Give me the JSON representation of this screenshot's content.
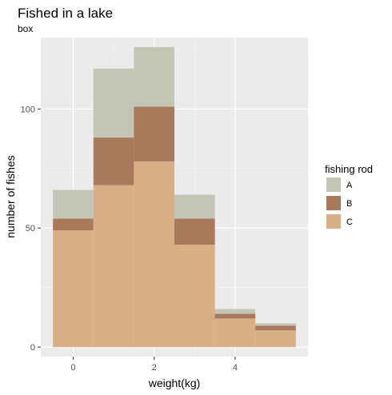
{
  "chart_data": {
    "type": "bar",
    "stacked": true,
    "title": "Fished in a lake",
    "subtitle": "box",
    "xlabel": "weight(kg)",
    "ylabel": "number of fishes",
    "x_ticks": [
      0,
      2,
      4
    ],
    "y_ticks": [
      0,
      50,
      100
    ],
    "xlim": [
      -0.8,
      5.8
    ],
    "ylim": [
      -4,
      130
    ],
    "bin_width": 1,
    "categories": [
      0,
      1,
      2,
      3,
      4,
      5
    ],
    "series": [
      {
        "name": "C",
        "color": "#d9b086",
        "values": [
          49,
          68,
          78,
          43,
          12,
          7
        ]
      },
      {
        "name": "B",
        "color": "#a8795a",
        "values": [
          5,
          20,
          23,
          11,
          2,
          2
        ]
      },
      {
        "name": "A",
        "color": "#c3c5b5",
        "values": [
          12,
          29,
          25,
          10,
          2,
          1
        ]
      }
    ],
    "legend": {
      "title": "fishing rod",
      "position": "right",
      "entries": [
        {
          "label": "A",
          "color": "#c3c5b5"
        },
        {
          "label": "B",
          "color": "#a8795a"
        },
        {
          "label": "C",
          "color": "#d9b086"
        }
      ]
    },
    "grid": true,
    "panel_background": "#ebebeb"
  }
}
